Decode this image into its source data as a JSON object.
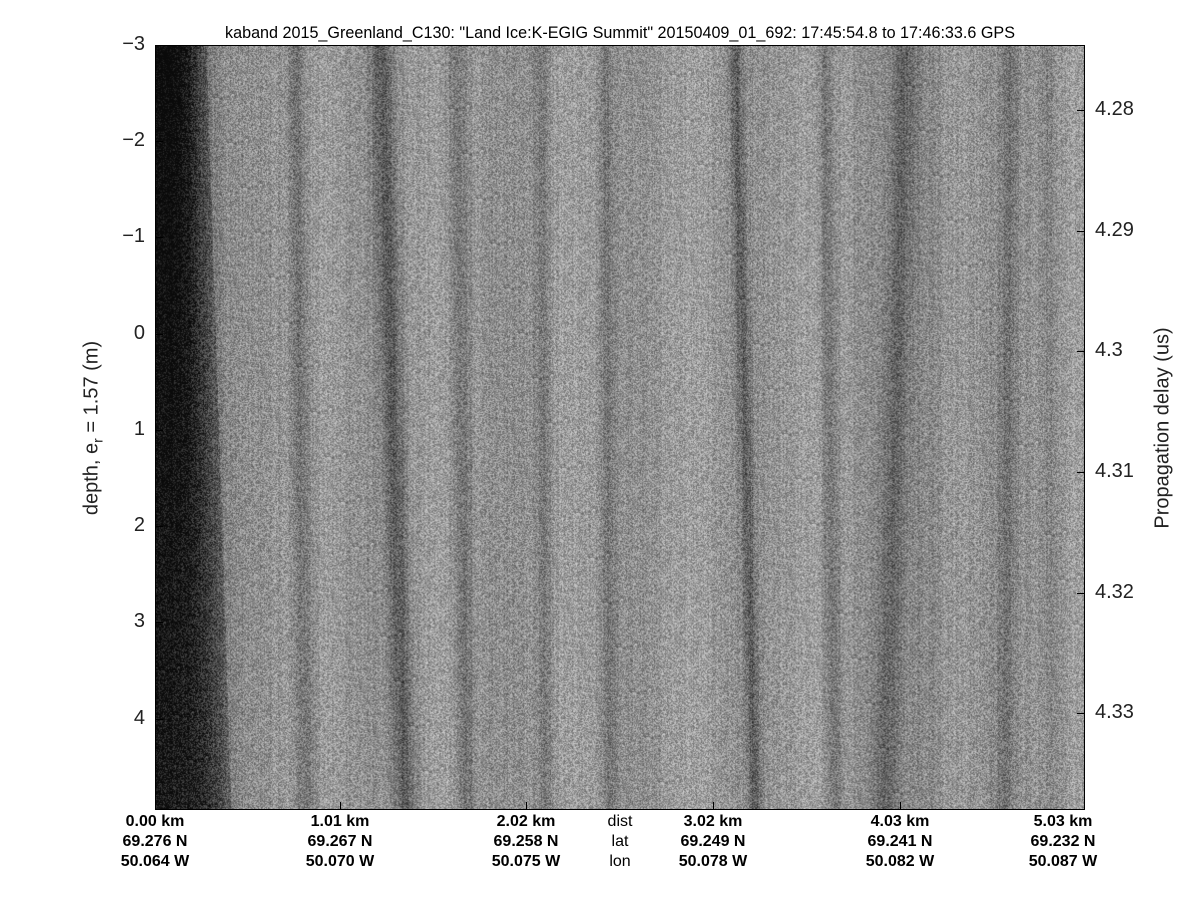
{
  "chart_data": {
    "type": "heatmap",
    "title": "kaband 2015_Greenland_C130: \"Land Ice:K-EGIG Summit\"  20150409_01_692: 17:45:54.8 to 17:46:33.6 GPS",
    "colormap": "grayscale",
    "ylabel_left": "depth, e",
    "ylabel_left_sub": "r",
    "ylabel_left_suffix": " = 1.57 (m)",
    "ylabel_right": "Propagation delay (us)",
    "ylim_left": [
      -3,
      4.95
    ],
    "yticks_left": [
      "−3",
      "−2",
      "−1",
      "0",
      "1",
      "2",
      "3",
      "4"
    ],
    "yticks_left_values": [
      -3,
      -2,
      -1,
      0,
      1,
      2,
      3,
      4
    ],
    "ylim_right": [
      4.2746,
      4.338
    ],
    "yticks_right": [
      "4.28",
      "4.29",
      "4.3",
      "4.31",
      "4.32",
      "4.33"
    ],
    "yticks_right_values": [
      4.28,
      4.29,
      4.3,
      4.31,
      4.32,
      4.33
    ],
    "x_row_labels": [
      "dist",
      "lat",
      "lon"
    ],
    "x_ticks": [
      {
        "dist": "0.00 km",
        "lat": "69.276 N",
        "lon": "50.064 W"
      },
      {
        "dist": "1.01 km",
        "lat": "69.267 N",
        "lon": "50.070 W"
      },
      {
        "dist": "2.02 km",
        "lat": "69.258 N",
        "lon": "50.075 W"
      },
      {
        "dist": "3.02 km",
        "lat": "69.249 N",
        "lon": "50.078 W"
      },
      {
        "dist": "4.03 km",
        "lat": "69.241 N",
        "lon": "50.082 W"
      },
      {
        "dist": "5.03 km",
        "lat": "69.232 N",
        "lon": "50.087 W"
      }
    ],
    "xlim_km": [
      0,
      5.03
    ]
  }
}
